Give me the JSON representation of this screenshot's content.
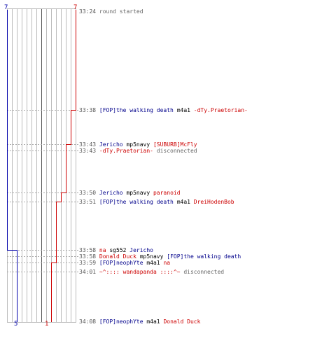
{
  "scores": {
    "blue_top": "7",
    "red_top": "7",
    "blue_bottom": "5",
    "red_bottom": "1"
  },
  "events": [
    {
      "time": "33:24",
      "parts": [
        {
          "text": "round started",
          "cls": "grey"
        }
      ]
    },
    {
      "time": "33:38",
      "parts": [
        {
          "text": "[FOP]the walking death",
          "cls": "blue"
        },
        {
          "text": " m4a1 ",
          "cls": "wpn"
        },
        {
          "text": "-dTy.Praetorian-",
          "cls": "red"
        }
      ]
    },
    {
      "time": "33:43",
      "parts": [
        {
          "text": "Jericho",
          "cls": "blue"
        },
        {
          "text": " mp5navy ",
          "cls": "wpn"
        },
        {
          "text": "[SUBURB]McFly",
          "cls": "red"
        }
      ]
    },
    {
      "time": "33:43",
      "parts": [
        {
          "text": "-dTy.Praetorian-",
          "cls": "red"
        },
        {
          "text": " disconnected",
          "cls": "grey"
        }
      ]
    },
    {
      "time": "33:50",
      "parts": [
        {
          "text": "Jericho",
          "cls": "blue"
        },
        {
          "text": " mp5navy ",
          "cls": "wpn"
        },
        {
          "text": "paranoid",
          "cls": "red"
        }
      ]
    },
    {
      "time": "33:51",
      "parts": [
        {
          "text": "[FOP]the walking death",
          "cls": "blue"
        },
        {
          "text": " m4a1 ",
          "cls": "wpn"
        },
        {
          "text": "DreiHodenBob",
          "cls": "red"
        }
      ]
    },
    {
      "time": "33:58",
      "parts": [
        {
          "text": "na",
          "cls": "red"
        },
        {
          "text": " sg552 ",
          "cls": "wpn"
        },
        {
          "text": "Jericho",
          "cls": "blue"
        }
      ]
    },
    {
      "time": "33:58",
      "parts": [
        {
          "text": "Donald Duck",
          "cls": "red"
        },
        {
          "text": " mp5navy ",
          "cls": "wpn"
        },
        {
          "text": "[FOP]the walking death",
          "cls": "blue"
        }
      ]
    },
    {
      "time": "33:59",
      "parts": [
        {
          "text": "[FOP]neophYte",
          "cls": "blue"
        },
        {
          "text": " m4a1 ",
          "cls": "wpn"
        },
        {
          "text": "na",
          "cls": "red"
        }
      ]
    },
    {
      "time": "34:01",
      "parts": [
        {
          "text": "~^:::: wandapanda ::::^~",
          "cls": "red"
        },
        {
          "text": " disconnected",
          "cls": "grey"
        }
      ]
    },
    {
      "time": "34:08",
      "parts": [
        {
          "text": "[FOP]neophYte",
          "cls": "blue"
        },
        {
          "text": " m4a1 ",
          "cls": "wpn"
        },
        {
          "text": "Donald Duck",
          "cls": "red"
        }
      ]
    }
  ],
  "colors": {
    "blue": "#0000aa",
    "red": "#cc0000",
    "grid": "#bbbbbb",
    "grid_dark": "#555555",
    "dash": "#aaaaaa"
  }
}
